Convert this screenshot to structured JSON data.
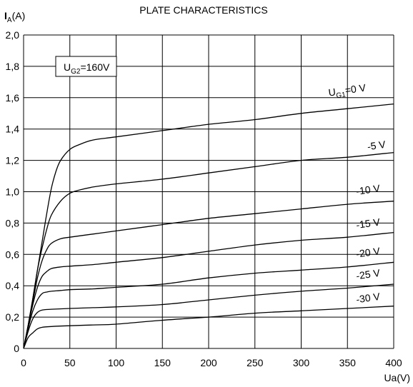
{
  "chart_data": {
    "type": "line",
    "title": "PLATE CHARACTERISTICS",
    "ylabel": {
      "main": "I",
      "sub": "A",
      "unit": "(A)"
    },
    "xlabel": "Ua(V)",
    "annotation": {
      "main": "U",
      "sub": "G2",
      "rest": "=160V"
    },
    "xlim": [
      0,
      400
    ],
    "ylim": [
      0,
      2.0
    ],
    "grid": true,
    "x_ticks": [
      0,
      50,
      100,
      150,
      200,
      250,
      300,
      350,
      400
    ],
    "x_tick_labels": [
      "0",
      "50",
      "100",
      "150",
      "200",
      "250",
      "300",
      "350",
      "400"
    ],
    "y_ticks": [
      0,
      0.2,
      0.4,
      0.6,
      0.8,
      1.0,
      1.2,
      1.4,
      1.6,
      1.8,
      2.0
    ],
    "y_tick_labels": [
      "0",
      "0,2",
      "0,4",
      "0,6",
      "0,8",
      "1,0",
      "1,2",
      "1,4",
      "1,6",
      "1,8",
      "2,0"
    ],
    "series": [
      {
        "label_main": "U",
        "label_sub": "G1",
        "label_rest": "=0 V",
        "label_at": [
          330,
          1.61
        ],
        "points": [
          [
            0,
            0
          ],
          [
            5,
            0.15
          ],
          [
            10,
            0.32
          ],
          [
            15,
            0.5
          ],
          [
            20,
            0.68
          ],
          [
            25,
            0.86
          ],
          [
            30,
            1.02
          ],
          [
            35,
            1.13
          ],
          [
            40,
            1.2
          ],
          [
            50,
            1.27
          ],
          [
            60,
            1.3
          ],
          [
            75,
            1.33
          ],
          [
            100,
            1.35
          ],
          [
            150,
            1.39
          ],
          [
            200,
            1.43
          ],
          [
            250,
            1.46
          ],
          [
            300,
            1.5
          ],
          [
            350,
            1.53
          ],
          [
            400,
            1.56
          ]
        ]
      },
      {
        "label": "-5 V",
        "label_at": [
          372,
          1.265
        ],
        "points": [
          [
            0,
            0
          ],
          [
            5,
            0.15
          ],
          [
            10,
            0.32
          ],
          [
            15,
            0.5
          ],
          [
            20,
            0.64
          ],
          [
            25,
            0.76
          ],
          [
            30,
            0.85
          ],
          [
            40,
            0.94
          ],
          [
            50,
            0.99
          ],
          [
            60,
            1.01
          ],
          [
            75,
            1.03
          ],
          [
            100,
            1.05
          ],
          [
            150,
            1.08
          ],
          [
            200,
            1.12
          ],
          [
            250,
            1.16
          ],
          [
            300,
            1.2
          ],
          [
            350,
            1.22
          ],
          [
            400,
            1.25
          ]
        ]
      },
      {
        "label": "-10 V",
        "label_at": [
          360,
          0.98
        ],
        "points": [
          [
            0,
            0
          ],
          [
            5,
            0.15
          ],
          [
            10,
            0.3
          ],
          [
            15,
            0.45
          ],
          [
            20,
            0.56
          ],
          [
            25,
            0.63
          ],
          [
            30,
            0.67
          ],
          [
            40,
            0.7
          ],
          [
            50,
            0.71
          ],
          [
            75,
            0.73
          ],
          [
            100,
            0.75
          ],
          [
            150,
            0.79
          ],
          [
            200,
            0.83
          ],
          [
            250,
            0.86
          ],
          [
            300,
            0.89
          ],
          [
            350,
            0.92
          ],
          [
            400,
            0.94
          ]
        ]
      },
      {
        "label": "-15 V",
        "label_at": [
          360,
          0.765
        ],
        "points": [
          [
            0,
            0
          ],
          [
            5,
            0.14
          ],
          [
            10,
            0.28
          ],
          [
            15,
            0.39
          ],
          [
            20,
            0.46
          ],
          [
            25,
            0.49
          ],
          [
            30,
            0.51
          ],
          [
            40,
            0.52
          ],
          [
            50,
            0.525
          ],
          [
            75,
            0.535
          ],
          [
            100,
            0.55
          ],
          [
            150,
            0.58
          ],
          [
            200,
            0.62
          ],
          [
            250,
            0.66
          ],
          [
            300,
            0.69
          ],
          [
            350,
            0.71
          ],
          [
            400,
            0.74
          ]
        ]
      },
      {
        "label": "-20 V",
        "label_at": [
          360,
          0.58
        ],
        "points": [
          [
            0,
            0
          ],
          [
            5,
            0.13
          ],
          [
            10,
            0.24
          ],
          [
            15,
            0.31
          ],
          [
            20,
            0.35
          ],
          [
            25,
            0.36
          ],
          [
            30,
            0.365
          ],
          [
            40,
            0.37
          ],
          [
            50,
            0.375
          ],
          [
            75,
            0.38
          ],
          [
            100,
            0.39
          ],
          [
            150,
            0.41
          ],
          [
            200,
            0.45
          ],
          [
            250,
            0.48
          ],
          [
            300,
            0.5
          ],
          [
            350,
            0.52
          ],
          [
            400,
            0.55
          ]
        ]
      },
      {
        "label": "-25 V",
        "label_at": [
          360,
          0.44
        ],
        "points": [
          [
            0,
            0
          ],
          [
            5,
            0.11
          ],
          [
            10,
            0.19
          ],
          [
            15,
            0.23
          ],
          [
            20,
            0.245
          ],
          [
            30,
            0.25
          ],
          [
            50,
            0.255
          ],
          [
            75,
            0.26
          ],
          [
            100,
            0.265
          ],
          [
            150,
            0.28
          ],
          [
            200,
            0.31
          ],
          [
            250,
            0.34
          ],
          [
            300,
            0.365
          ],
          [
            350,
            0.385
          ],
          [
            400,
            0.41
          ]
        ]
      },
      {
        "label": "-30 V",
        "label_at": [
          360,
          0.29
        ],
        "points": [
          [
            0,
            0
          ],
          [
            5,
            0.07
          ],
          [
            10,
            0.1
          ],
          [
            15,
            0.125
          ],
          [
            20,
            0.135
          ],
          [
            30,
            0.14
          ],
          [
            50,
            0.145
          ],
          [
            75,
            0.15
          ],
          [
            100,
            0.155
          ],
          [
            150,
            0.18
          ],
          [
            200,
            0.2
          ],
          [
            250,
            0.225
          ],
          [
            300,
            0.24
          ],
          [
            350,
            0.255
          ],
          [
            400,
            0.27
          ]
        ]
      }
    ]
  }
}
